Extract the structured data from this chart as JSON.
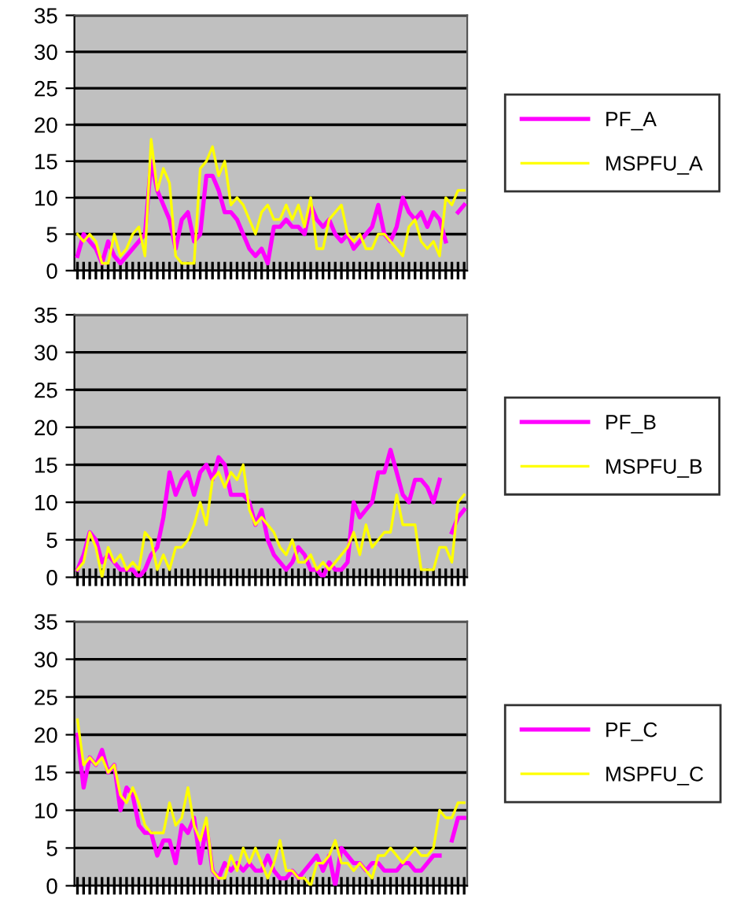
{
  "chart_data": [
    {
      "type": "line",
      "categories": [
        null,
        null,
        null,
        null,
        null,
        null,
        null,
        null,
        null,
        null,
        null,
        null,
        null,
        null,
        null,
        null,
        null,
        null,
        null,
        null,
        null,
        null,
        null,
        null,
        null,
        null,
        null,
        null,
        null,
        null,
        null,
        null,
        null,
        null,
        null,
        null,
        null,
        null,
        null,
        null,
        null,
        null,
        null,
        null,
        null,
        null,
        null,
        null,
        null,
        null,
        null,
        null,
        null,
        null,
        null,
        null,
        null,
        null,
        null,
        null,
        null,
        null,
        null,
        null
      ],
      "ylim": [
        0,
        35
      ],
      "yticks": [
        0,
        5,
        10,
        15,
        20,
        25,
        30,
        35
      ],
      "grid": "y",
      "legend": "right",
      "marker": "none",
      "line_style": "solid",
      "series": [
        {
          "name": "PF_A",
          "color": "#ff00ff",
          "values": [
            2,
            5,
            4,
            3,
            1,
            4,
            2,
            1,
            2,
            3,
            4,
            5,
            15,
            11,
            9,
            7,
            3,
            7,
            8,
            4,
            5,
            13,
            13,
            11,
            8,
            8,
            7,
            5,
            3,
            2,
            3,
            1,
            6,
            6,
            7,
            6,
            6,
            5,
            9,
            7,
            6,
            7,
            5,
            4,
            5,
            3,
            4,
            5,
            6,
            9,
            5,
            4,
            6,
            10,
            8,
            7,
            8,
            6,
            8,
            7,
            4,
            null,
            8,
            9
          ]
        },
        {
          "name": "MSPFU_A",
          "color": "#ffff00",
          "values": [
            5,
            4,
            5,
            4,
            1,
            1,
            5,
            2,
            3,
            5,
            6,
            2,
            18,
            11,
            14,
            12,
            2,
            1,
            1,
            1,
            14,
            15,
            17,
            13,
            15,
            9,
            10,
            9,
            7,
            5,
            8,
            9,
            7,
            7,
            9,
            7,
            9,
            6,
            10,
            3,
            3,
            7,
            8,
            9,
            5,
            4,
            5,
            3,
            3,
            5,
            5,
            4,
            3,
            2,
            6,
            7,
            4,
            3,
            4,
            2,
            10,
            9,
            11,
            11
          ]
        }
      ]
    },
    {
      "type": "line",
      "categories": [
        null,
        null,
        null,
        null,
        null,
        null,
        null,
        null,
        null,
        null,
        null,
        null,
        null,
        null,
        null,
        null,
        null,
        null,
        null,
        null,
        null,
        null,
        null,
        null,
        null,
        null,
        null,
        null,
        null,
        null,
        null,
        null,
        null,
        null,
        null,
        null,
        null,
        null,
        null,
        null,
        null,
        null,
        null,
        null,
        null,
        null,
        null,
        null,
        null,
        null,
        null,
        null,
        null,
        null,
        null,
        null,
        null,
        null,
        null,
        null,
        null,
        null,
        null,
        null
      ],
      "ylim": [
        0,
        35
      ],
      "yticks": [
        0,
        5,
        10,
        15,
        20,
        25,
        30,
        35
      ],
      "grid": "y",
      "legend": "right",
      "marker": "none",
      "line_style": "solid",
      "series": [
        {
          "name": "PF_B",
          "color": "#ff00ff",
          "values": [
            1,
            3,
            6,
            5,
            2,
            3,
            2,
            1,
            1,
            1,
            0,
            1,
            3,
            4,
            8,
            14,
            11,
            13,
            14,
            11,
            14,
            15,
            13,
            16,
            15,
            11,
            11,
            11,
            10,
            7,
            9,
            5,
            3,
            2,
            1,
            2,
            4,
            3,
            1,
            1,
            0,
            2,
            1,
            1,
            2,
            10,
            8,
            9,
            10,
            14,
            14,
            17,
            14,
            11,
            10,
            13,
            13,
            12,
            10,
            13,
            null,
            6,
            8,
            9
          ]
        },
        {
          "name": "MSPFU_B",
          "color": "#ffff00",
          "values": [
            1,
            2,
            6,
            4,
            0,
            4,
            2,
            3,
            1,
            2,
            1,
            6,
            5,
            1,
            3,
            1,
            4,
            4,
            5,
            7,
            10,
            7,
            13,
            14,
            12,
            14,
            13,
            15,
            9,
            7,
            8,
            7,
            6,
            4,
            3,
            5,
            2,
            2,
            3,
            1,
            2,
            1,
            2,
            3,
            4,
            6,
            3,
            7,
            4,
            5,
            6,
            6,
            11,
            7,
            7,
            7,
            1,
            1,
            1,
            4,
            4,
            2,
            10,
            11
          ]
        }
      ]
    },
    {
      "type": "line",
      "categories": [
        null,
        null,
        null,
        null,
        null,
        null,
        null,
        null,
        null,
        null,
        null,
        null,
        null,
        null,
        null,
        null,
        null,
        null,
        null,
        null,
        null,
        null,
        null,
        null,
        null,
        null,
        null,
        null,
        null,
        null,
        null,
        null,
        null,
        null,
        null,
        null,
        null,
        null,
        null,
        null,
        null,
        null,
        null,
        null,
        null,
        null,
        null,
        null,
        null,
        null,
        null,
        null,
        null,
        null,
        null,
        null,
        null,
        null,
        null,
        null,
        null,
        null,
        null,
        null
      ],
      "ylim": [
        0,
        35
      ],
      "yticks": [
        0,
        5,
        10,
        15,
        20,
        25,
        30,
        35
      ],
      "grid": "y",
      "legend": "right",
      "marker": "none",
      "line_style": "solid",
      "series": [
        {
          "name": "PF_C",
          "color": "#ff00ff",
          "values": [
            20,
            13,
            17,
            16,
            18,
            15,
            16,
            10,
            13,
            12,
            8,
            7,
            7,
            4,
            6,
            6,
            3,
            8,
            7,
            9,
            3,
            8,
            2,
            1,
            3,
            2,
            3,
            2,
            3,
            2,
            2,
            4,
            2,
            1,
            1,
            2,
            1,
            2,
            3,
            4,
            2,
            4,
            0,
            5,
            4,
            3,
            3,
            2,
            3,
            3,
            2,
            2,
            2,
            3,
            3,
            2,
            2,
            3,
            4,
            4,
            null,
            6,
            9,
            9
          ]
        },
        {
          "name": "MSPFU_C",
          "color": "#ffff00",
          "values": [
            22,
            16,
            17,
            16,
            17,
            15,
            16,
            12,
            11,
            13,
            11,
            8,
            7,
            7,
            7,
            11,
            8,
            9,
            13,
            8,
            6,
            9,
            2,
            1,
            1,
            4,
            2,
            5,
            3,
            5,
            3,
            1,
            3,
            6,
            2,
            2,
            1,
            1,
            0,
            3,
            3,
            4,
            6,
            3,
            3,
            2,
            3,
            2,
            1,
            4,
            4,
            5,
            4,
            3,
            4,
            5,
            4,
            4,
            5,
            10,
            9,
            9,
            11,
            11
          ]
        }
      ]
    }
  ]
}
